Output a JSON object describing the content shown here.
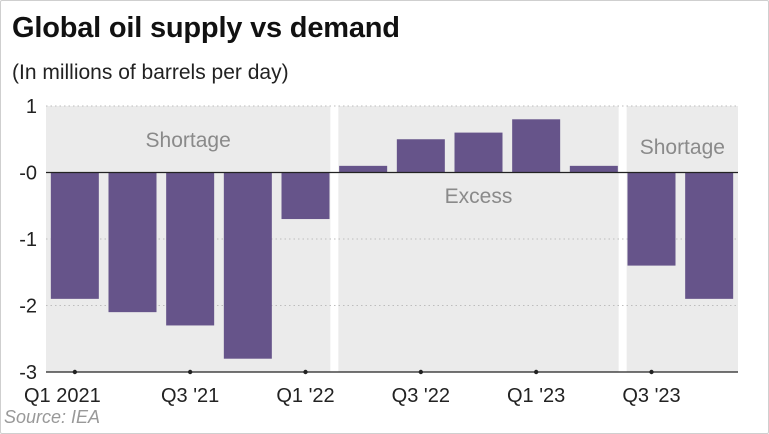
{
  "title": "Global oil supply vs demand",
  "subtitle": "(In millions of barrels per day)",
  "source": "Source: IEA",
  "chart_data": {
    "type": "bar",
    "title": "Global oil supply vs demand",
    "subtitle": "(In millions of barrels per day)",
    "categories": [
      "Q1 2021",
      "Q2 2021",
      "Q3 2021",
      "Q4 2021",
      "Q1 2022",
      "Q2 2022",
      "Q3 2022",
      "Q4 2022",
      "Q1 2023",
      "Q2 2023",
      "Q3 2023",
      "Q4 2023"
    ],
    "values": [
      -1.9,
      -2.1,
      -2.3,
      -2.8,
      -0.7,
      0.1,
      0.5,
      0.6,
      0.8,
      0.1,
      -1.4,
      -1.9
    ],
    "ylim": [
      -3,
      1
    ],
    "yticks": [
      1,
      0,
      -1,
      -2,
      -3
    ],
    "ytick_labels": [
      "1",
      "-0",
      "-1",
      "-2",
      "-3"
    ],
    "xtick_labels": [
      {
        "index": 0,
        "label": "Q1 2021"
      },
      {
        "index": 2,
        "label": "Q3 '21"
      },
      {
        "index": 4,
        "label": "Q1 '22"
      },
      {
        "index": 6,
        "label": "Q3 '22"
      },
      {
        "index": 8,
        "label": "Q1 '23"
      },
      {
        "index": 10,
        "label": "Q3 '23"
      }
    ],
    "regions": [
      {
        "label": "Shortage",
        "start": 0,
        "end": 4
      },
      {
        "label": "Excess",
        "start": 5,
        "end": 9
      },
      {
        "label": "Shortage",
        "start": 10,
        "end": 11
      }
    ],
    "grid": true,
    "colors": {
      "bar": "#66548a",
      "region_bg": "#ebebeb",
      "grid": "#bdbdbd",
      "axis": "#222222",
      "region_text": "#8a8a8a"
    }
  }
}
